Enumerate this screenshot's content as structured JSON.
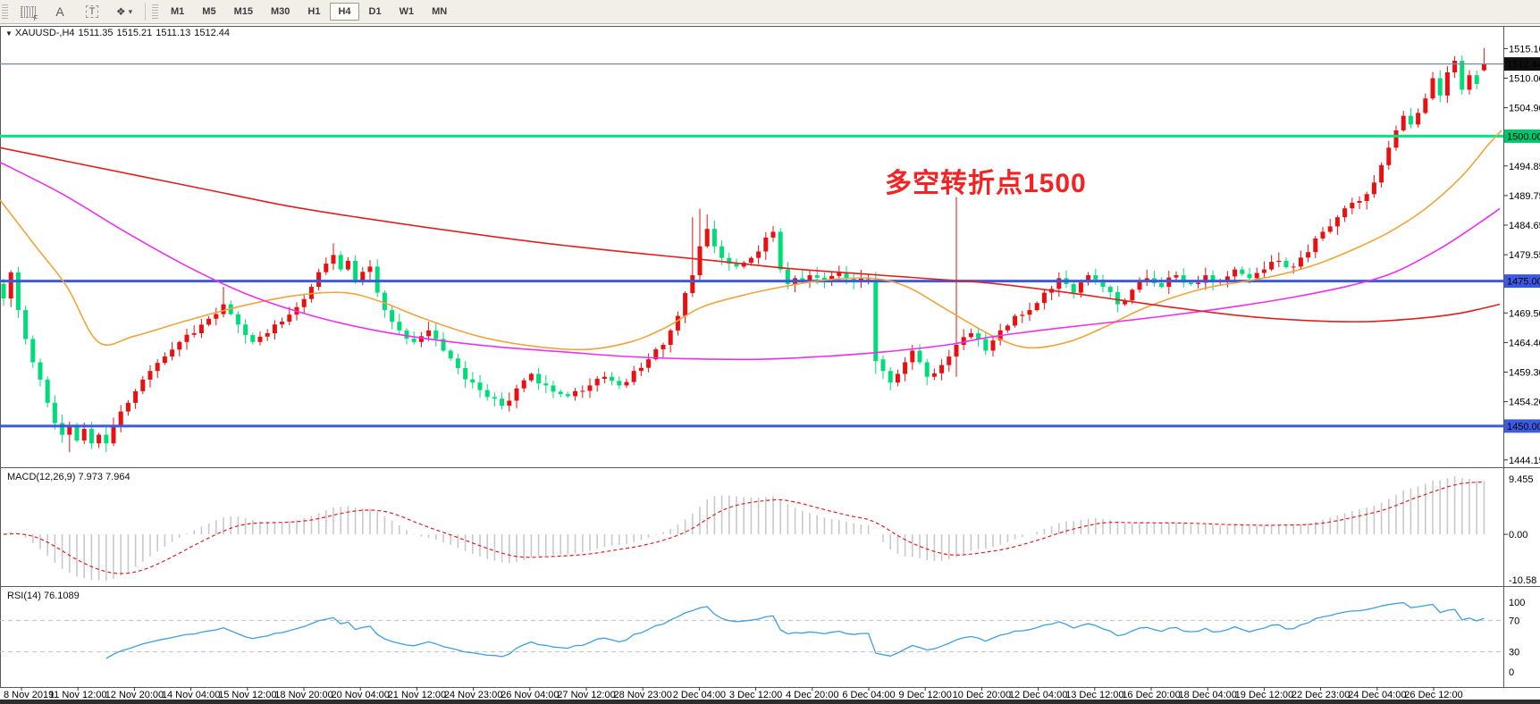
{
  "toolbar": {
    "icons": [
      {
        "name": "indicator-grid-icon",
        "glyph": "F"
      },
      {
        "name": "font-icon",
        "glyph": "A"
      },
      {
        "name": "text-label-icon",
        "glyph": "T"
      },
      {
        "name": "symbols-icon",
        "glyph": "❖"
      },
      {
        "name": "dropdown-caret-icon",
        "glyph": "▾"
      }
    ],
    "timeframes": [
      {
        "label": "M1",
        "active": false
      },
      {
        "label": "M5",
        "active": false
      },
      {
        "label": "M15",
        "active": false
      },
      {
        "label": "M30",
        "active": false
      },
      {
        "label": "H1",
        "active": false
      },
      {
        "label": "H4",
        "active": true
      },
      {
        "label": "D1",
        "active": false
      },
      {
        "label": "W1",
        "active": false
      },
      {
        "label": "MN",
        "active": false
      }
    ]
  },
  "chart_header": {
    "dropdown_icon": "▼",
    "symbol": "XAUUSD-,H4",
    "open": "1511.35",
    "high": "1515.21",
    "low": "1511.13",
    "close": "1512.44"
  },
  "annotation": {
    "text": "多空转折点1500",
    "color": "#f42222"
  },
  "macd_panel": {
    "label": "MACD(12,26,9)",
    "values": "7.973 7.964",
    "axis_max": "9.455",
    "axis_zero": "0.00",
    "axis_min": "-10.58"
  },
  "rsi_panel": {
    "label": "RSI(14)",
    "value": "76.1089",
    "axis": [
      "100",
      "70",
      "30",
      "0"
    ]
  },
  "chart_data": {
    "type": "candlestick",
    "symbol": "XAUUSD",
    "timeframe": "H4",
    "title": "XAUUSD-,H4 1511.35 1515.21 1511.13 1512.44",
    "current_price": 1512.44,
    "last_bar": {
      "open": 1511.35,
      "high": 1515.21,
      "low": 1511.13,
      "close": 1512.44
    },
    "price_ticks": [
      1515.1,
      1510.0,
      1504.9,
      1494.85,
      1489.75,
      1484.65,
      1479.55,
      1469.5,
      1464.4,
      1459.3,
      1454.2,
      1444.15
    ],
    "price_boxes": [
      {
        "value": "1512.44",
        "price": 1512.44,
        "color": "#101010"
      },
      {
        "value": "1500.00",
        "price": 1500.0,
        "color": "#00c76e"
      },
      {
        "value": "1475.00",
        "price": 1475.0,
        "color": "#3c5ae0"
      },
      {
        "value": "1450.00",
        "price": 1450.0,
        "color": "#3c5ae0"
      }
    ],
    "h_lines": [
      {
        "price": 1500.0,
        "color": "#00e87c",
        "width": 3
      },
      {
        "price": 1475.0,
        "color": "#3c5ae0",
        "width": 3
      },
      {
        "price": 1450.0,
        "color": "#3c5ae0",
        "width": 3
      }
    ],
    "current_line_color": "#7e90a0",
    "time_labels": [
      "8 Nov 2019",
      "11 Nov 12:00",
      "12 Nov 20:00",
      "14 Nov 04:00",
      "15 Nov 12:00",
      "18 Nov 20:00",
      "20 Nov 04:00",
      "21 Nov 12:00",
      "24 Nov 23:00",
      "26 Nov 04:00",
      "27 Nov 12:00",
      "28 Nov 23:00",
      "2 Dec 04:00",
      "3 Dec 12:00",
      "4 Dec 20:00",
      "6 Dec 04:00",
      "9 Dec 12:00",
      "10 Dec 20:00",
      "12 Dec 04:00",
      "13 Dec 12:00",
      "16 Dec 20:00",
      "18 Dec 04:00",
      "19 Dec 12:00",
      "22 Dec 23:00",
      "24 Dec 04:00",
      "26 Dec 12:00"
    ],
    "bars": 203,
    "seed": 42,
    "close_anchors": [
      [
        0,
        1472
      ],
      [
        1,
        1476.5
      ],
      [
        2,
        1470
      ],
      [
        3,
        1465
      ],
      [
        4,
        1461
      ],
      [
        5,
        1458
      ],
      [
        6,
        1454
      ],
      [
        7,
        1450.5
      ],
      [
        8,
        1448.5
      ],
      [
        9,
        1450
      ],
      [
        10,
        1447.5
      ],
      [
        11,
        1449.5
      ],
      [
        12,
        1447
      ],
      [
        13,
        1448.5
      ],
      [
        14,
        1447
      ],
      [
        15,
        1450
      ],
      [
        16,
        1452.5
      ],
      [
        17,
        1454
      ],
      [
        18,
        1456
      ],
      [
        19,
        1458
      ],
      [
        20,
        1459.5
      ],
      [
        22,
        1462
      ],
      [
        24,
        1464.5
      ],
      [
        26,
        1466
      ],
      [
        28,
        1468.5
      ],
      [
        30,
        1471
      ],
      [
        32,
        1467.5
      ],
      [
        34,
        1464.5
      ],
      [
        36,
        1466
      ],
      [
        38,
        1468
      ],
      [
        40,
        1470.5
      ],
      [
        42,
        1474
      ],
      [
        44,
        1478
      ],
      [
        45,
        1479.5
      ],
      [
        46,
        1477
      ],
      [
        47,
        1478.5
      ],
      [
        48,
        1475
      ],
      [
        50,
        1477.5
      ],
      [
        51,
        1473
      ],
      [
        52,
        1470
      ],
      [
        54,
        1466.5
      ],
      [
        56,
        1464.5
      ],
      [
        58,
        1466.5
      ],
      [
        60,
        1463
      ],
      [
        62,
        1460
      ],
      [
        64,
        1457.5
      ],
      [
        66,
        1455
      ],
      [
        68,
        1453.5
      ],
      [
        70,
        1456.5
      ],
      [
        72,
        1459
      ],
      [
        74,
        1457
      ],
      [
        76,
        1455.5
      ],
      [
        78,
        1456
      ],
      [
        80,
        1457
      ],
      [
        82,
        1458.5
      ],
      [
        84,
        1457
      ],
      [
        86,
        1459.5
      ],
      [
        88,
        1461.5
      ],
      [
        90,
        1464
      ],
      [
        92,
        1469
      ],
      [
        94,
        1476
      ],
      [
        95,
        1481
      ],
      [
        96,
        1484
      ],
      [
        97,
        1481
      ],
      [
        98,
        1479
      ],
      [
        100,
        1477.5
      ],
      [
        102,
        1479
      ],
      [
        104,
        1482.5
      ],
      [
        105,
        1483.5
      ],
      [
        106,
        1477
      ],
      [
        107,
        1474.5
      ],
      [
        108,
        1475.5
      ],
      [
        110,
        1476
      ],
      [
        112,
        1475
      ],
      [
        114,
        1476.5
      ],
      [
        116,
        1475
      ],
      [
        118,
        1475.5
      ],
      [
        119,
        1461.5
      ],
      [
        120,
        1459.5
      ],
      [
        121,
        1457.5
      ],
      [
        122,
        1459
      ],
      [
        123,
        1461
      ],
      [
        124,
        1463
      ],
      [
        125,
        1461
      ],
      [
        126,
        1458.5
      ],
      [
        128,
        1460.5
      ],
      [
        130,
        1464
      ],
      [
        132,
        1466
      ],
      [
        134,
        1463
      ],
      [
        136,
        1466.5
      ],
      [
        138,
        1469
      ],
      [
        140,
        1470
      ],
      [
        142,
        1473
      ],
      [
        144,
        1475.5
      ],
      [
        146,
        1473
      ],
      [
        148,
        1476
      ],
      [
        150,
        1474
      ],
      [
        152,
        1471
      ],
      [
        154,
        1473.5
      ],
      [
        156,
        1475.5
      ],
      [
        158,
        1474
      ],
      [
        160,
        1476
      ],
      [
        162,
        1474.5
      ],
      [
        164,
        1476
      ],
      [
        166,
        1475
      ],
      [
        168,
        1477
      ],
      [
        170,
        1475.5
      ],
      [
        172,
        1477
      ],
      [
        174,
        1478.5
      ],
      [
        176,
        1477.5
      ],
      [
        178,
        1480
      ],
      [
        180,
        1483.5
      ],
      [
        182,
        1486
      ],
      [
        184,
        1488.5
      ],
      [
        186,
        1490
      ],
      [
        187,
        1492
      ],
      [
        188,
        1495
      ],
      [
        189,
        1498
      ],
      [
        190,
        1501
      ],
      [
        191,
        1503.5
      ],
      [
        192,
        1502
      ],
      [
        193,
        1504
      ],
      [
        194,
        1506.5
      ],
      [
        195,
        1510
      ],
      [
        196,
        1507
      ],
      [
        197,
        1511
      ],
      [
        198,
        1513
      ],
      [
        199,
        1508
      ],
      [
        200,
        1510.5
      ],
      [
        201,
        1509
      ],
      [
        202,
        1512.44
      ]
    ],
    "events": [
      {
        "i": 9,
        "low": 1445.5
      },
      {
        "i": 12,
        "low": 1446
      },
      {
        "i": 14,
        "low": 1445.5
      },
      {
        "i": 30,
        "high": 1474
      },
      {
        "i": 45,
        "high": 1481.5
      },
      {
        "i": 94,
        "high": 1486
      },
      {
        "i": 95,
        "high": 1487.5
      },
      {
        "i": 96,
        "high": 1486.5
      },
      {
        "i": 105,
        "high": 1484.5
      },
      {
        "i": 119,
        "open": 1474.8,
        "close": 1461.2,
        "low": 1459
      },
      {
        "i": 130,
        "high": 1489.5,
        "low": 1458.5
      },
      {
        "i": 198,
        "high": 1513.8
      },
      {
        "i": 202,
        "open": 1511.35,
        "high": 1515.21,
        "low": 1511.13,
        "close": 1512.44
      }
    ],
    "colors": {
      "up": "#e81010",
      "down": "#00dc78",
      "macd_hist": "#c9c9c9",
      "macd_signal": "#e02020",
      "rsi": "#3f9fdf",
      "levels": "#c0c0c0"
    },
    "moving_averages": [
      {
        "name": "ma-fast-orange",
        "color": "#f0a43c",
        "points": [
          [
            0,
            1489
          ],
          [
            40,
            1481
          ],
          [
            75,
            1474
          ],
          [
            110,
            1464.5
          ],
          [
            150,
            1465.5
          ],
          [
            205,
            1468
          ],
          [
            265,
            1470.5
          ],
          [
            330,
            1472.5
          ],
          [
            385,
            1473
          ],
          [
            425,
            1471.5
          ],
          [
            475,
            1468.5
          ],
          [
            535,
            1465.5
          ],
          [
            595,
            1463.8
          ],
          [
            655,
            1463.2
          ],
          [
            705,
            1464.5
          ],
          [
            745,
            1467
          ],
          [
            785,
            1470.5
          ],
          [
            830,
            1472.5
          ],
          [
            875,
            1474
          ],
          [
            925,
            1475.2
          ],
          [
            975,
            1475.5
          ],
          [
            1015,
            1474
          ],
          [
            1060,
            1470
          ],
          [
            1110,
            1465.6
          ],
          [
            1150,
            1463.5
          ],
          [
            1195,
            1464.5
          ],
          [
            1235,
            1467
          ],
          [
            1275,
            1470
          ],
          [
            1315,
            1472.3
          ],
          [
            1355,
            1474
          ],
          [
            1395,
            1475
          ],
          [
            1435,
            1476.2
          ],
          [
            1475,
            1478
          ],
          [
            1515,
            1480.5
          ],
          [
            1555,
            1483.5
          ],
          [
            1595,
            1487.5
          ],
          [
            1635,
            1493
          ],
          [
            1665,
            1498.5
          ],
          [
            1680,
            1501
          ]
        ]
      },
      {
        "name": "ma-mid-magenta",
        "color": "#ee2fee",
        "points": [
          [
            0,
            1495.5
          ],
          [
            70,
            1490
          ],
          [
            140,
            1483.5
          ],
          [
            210,
            1477.5
          ],
          [
            280,
            1472.5
          ],
          [
            350,
            1469
          ],
          [
            420,
            1466.5
          ],
          [
            490,
            1464.8
          ],
          [
            560,
            1463.6
          ],
          [
            630,
            1462.8
          ],
          [
            700,
            1462
          ],
          [
            770,
            1461.6
          ],
          [
            850,
            1461.5
          ],
          [
            920,
            1462
          ],
          [
            990,
            1462.8
          ],
          [
            1060,
            1464
          ],
          [
            1110,
            1465.4
          ],
          [
            1180,
            1466.8
          ],
          [
            1250,
            1468
          ],
          [
            1320,
            1469.3
          ],
          [
            1390,
            1470.8
          ],
          [
            1450,
            1472.3
          ],
          [
            1510,
            1474.2
          ],
          [
            1560,
            1476.5
          ],
          [
            1610,
            1480.5
          ],
          [
            1650,
            1484.5
          ],
          [
            1678,
            1487.5
          ]
        ]
      },
      {
        "name": "ma-slow-red",
        "color": "#e02020",
        "points": [
          [
            0,
            1498
          ],
          [
            80,
            1495.5
          ],
          [
            160,
            1493
          ],
          [
            240,
            1490.5
          ],
          [
            320,
            1488
          ],
          [
            400,
            1486
          ],
          [
            480,
            1484.2
          ],
          [
            560,
            1482.5
          ],
          [
            640,
            1481
          ],
          [
            720,
            1479.7
          ],
          [
            800,
            1478.5
          ],
          [
            880,
            1477.2
          ],
          [
            960,
            1476.3
          ],
          [
            1040,
            1475.4
          ],
          [
            1110,
            1474.6
          ],
          [
            1180,
            1473.3
          ],
          [
            1250,
            1471.8
          ],
          [
            1320,
            1470.3
          ],
          [
            1390,
            1469
          ],
          [
            1460,
            1468.2
          ],
          [
            1530,
            1468
          ],
          [
            1590,
            1468.6
          ],
          [
            1635,
            1469.5
          ],
          [
            1678,
            1471
          ]
        ]
      }
    ],
    "macd": {
      "fast": 12,
      "slow": 26,
      "signal": 9,
      "current_main": 7.973,
      "current_signal": 7.964,
      "axis": [
        9.455,
        0.0,
        -10.58
      ]
    },
    "rsi": {
      "period": 14,
      "current": 76.1089,
      "levels": [
        70,
        30
      ],
      "range": [
        0,
        100
      ]
    }
  }
}
